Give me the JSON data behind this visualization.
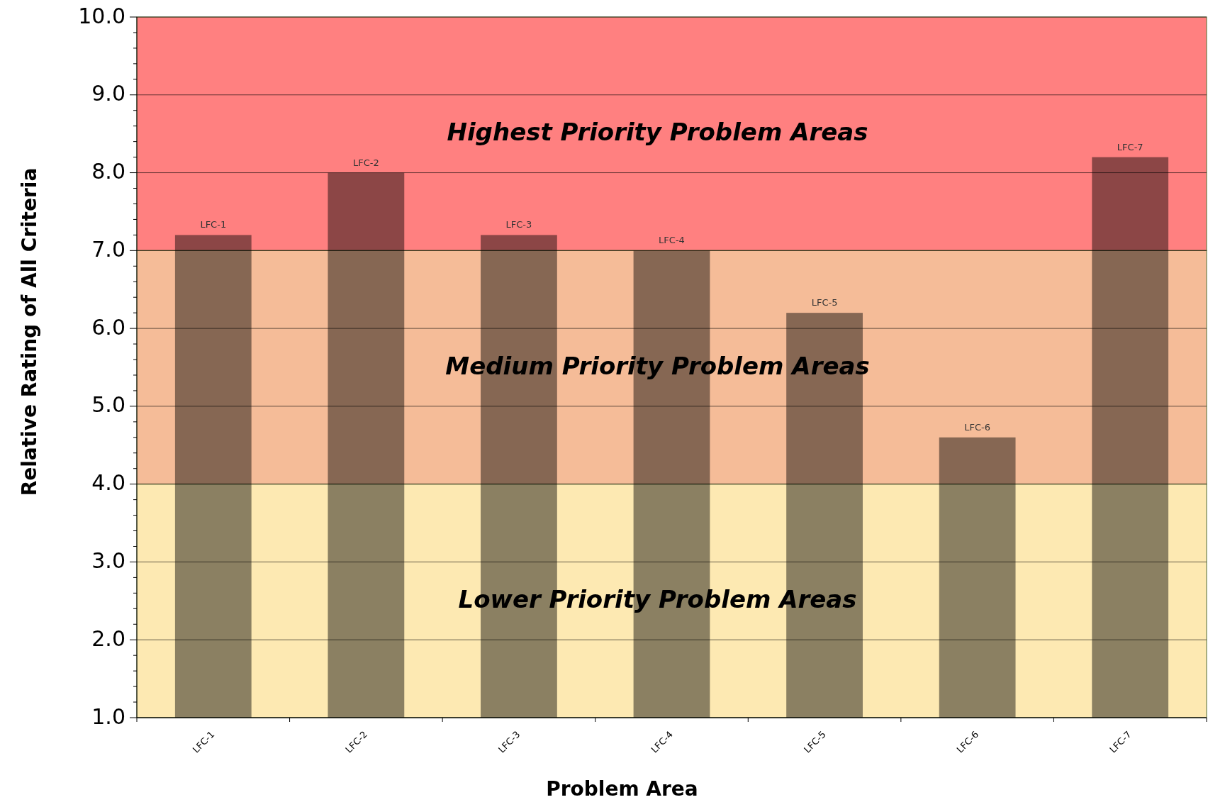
{
  "chart_data": {
    "type": "bar",
    "xlabel": "Problem Area",
    "ylabel": "Relative Rating of All Criteria",
    "categories": [
      "LFC-1",
      "LFC-2",
      "LFC-3",
      "LFC-4",
      "LFC-5",
      "LFC-6",
      "LFC-7"
    ],
    "values": [
      7.2,
      8.0,
      7.2,
      7.0,
      6.2,
      4.6,
      8.2
    ],
    "value_labels": [
      "LFC-1",
      "LFC-2",
      "LFC-3",
      "LFC-4",
      "LFC-5",
      "LFC-6",
      "LFC-7"
    ],
    "ylim": [
      1,
      10
    ],
    "yticks": [
      {
        "value": 1,
        "label": "1.0"
      },
      {
        "value": 2,
        "label": "2.0"
      },
      {
        "value": 3,
        "label": "3.0"
      },
      {
        "value": 4,
        "label": "4.0"
      },
      {
        "value": 5,
        "label": "5.0"
      },
      {
        "value": 6,
        "label": "6.0"
      },
      {
        "value": 7,
        "label": "7.0"
      },
      {
        "value": 8,
        "label": "8.0"
      },
      {
        "value": 9,
        "label": "9.0"
      },
      {
        "value": 10,
        "label": "10.0"
      }
    ],
    "grid": "y",
    "bands": [
      {
        "axis": "y",
        "from": 7,
        "to": 10,
        "label": "Highest Priority Problem Areas",
        "color": "#ff8080"
      },
      {
        "axis": "y",
        "from": 4,
        "to": 7,
        "label": "Medium Priority Problem Areas",
        "color": "#f5bc98"
      },
      {
        "axis": "y",
        "from": 1,
        "to": 4,
        "label": "Lower Priority Problem Areas",
        "color": "#fde9b2"
      }
    ]
  }
}
